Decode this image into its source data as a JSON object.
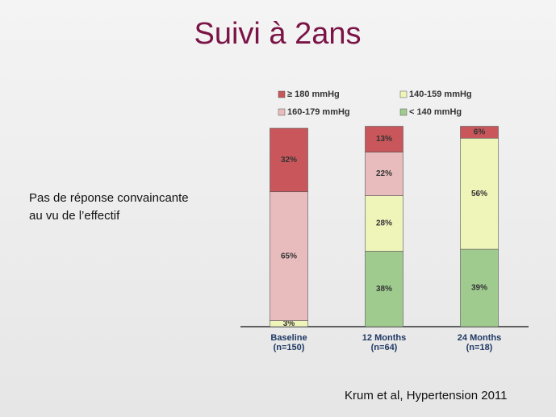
{
  "slide": {
    "title": "Suivi à 2ans",
    "text_lines": [
      "Pas de réponse convaincante",
      "au vu de l’effectif"
    ],
    "source": "Krum et al, Hypertension 2011"
  },
  "chart_data": {
    "type": "stacked_bar",
    "categories": [
      [
        "Baseline",
        "(n=150)"
      ],
      [
        "12 Months",
        "(n=64)"
      ],
      [
        "24 Months",
        "(n=18)"
      ]
    ],
    "series": [
      {
        "name": "< 140 mmHg",
        "color": "#9fcb8f",
        "values": [
          null,
          38,
          39
        ],
        "value_labels": [
          null,
          "38%",
          "39%"
        ]
      },
      {
        "name": "140-159 mmHg",
        "color": "#eff4b9",
        "values": [
          3,
          28,
          56
        ],
        "value_labels": [
          "3%",
          "28%",
          "56%"
        ]
      },
      {
        "name": "160-179 mmHg",
        "color": "#e8bcbc",
        "values": [
          65,
          22,
          null
        ],
        "value_labels": [
          "65%",
          "22%",
          null
        ]
      },
      {
        "name": "≥ 180 mmHg",
        "color": "#c8565a",
        "values": [
          32,
          13,
          6
        ],
        "value_labels": [
          "32%",
          "13%",
          "6%"
        ]
      }
    ],
    "ylim": [
      0,
      100
    ]
  }
}
